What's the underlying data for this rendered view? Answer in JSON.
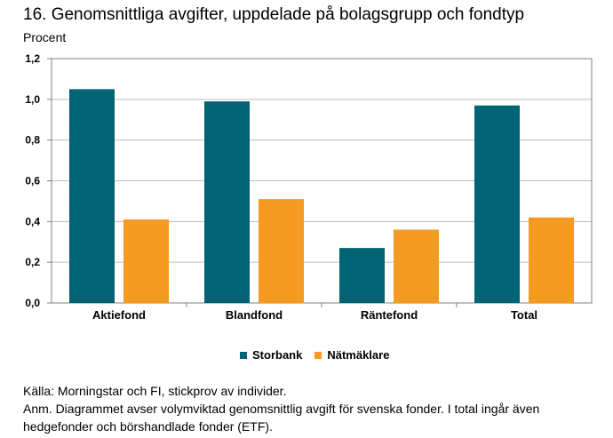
{
  "chart_data": {
    "type": "bar",
    "title": "16. Genomsnittliga avgifter, uppdelade på bolagsgrupp och fondtyp",
    "ylabel": "Procent",
    "xlabel": "",
    "categories": [
      "Aktiefond",
      "Blandfond",
      "Räntefond",
      "Total"
    ],
    "series": [
      {
        "name": "Storbank",
        "color": "#006373",
        "values": [
          1.05,
          0.99,
          0.27,
          0.97
        ]
      },
      {
        "name": "Nätmäklare",
        "color": "#f59a23",
        "values": [
          0.41,
          0.51,
          0.36,
          0.42
        ]
      }
    ],
    "ylim": [
      0,
      1.2
    ],
    "yticks": [
      {
        "value": 0.0,
        "label": "0,0"
      },
      {
        "value": 0.2,
        "label": "0,2"
      },
      {
        "value": 0.4,
        "label": "0,4"
      },
      {
        "value": 0.6,
        "label": "0,6"
      },
      {
        "value": 0.8,
        "label": "0,8"
      },
      {
        "value": 1.0,
        "label": "1,0"
      },
      {
        "value": 1.2,
        "label": "1,2"
      }
    ],
    "grid": true,
    "legend_position": "bottom"
  },
  "notes": {
    "source": "Källa: Morningstar och FI, stickprov av individer.",
    "remark": "Anm. Diagrammet avser volymviktad genomsnittlig avgift för svenska fonder. I total ingår även hedgefonder och börshandlade fonder (ETF)."
  }
}
